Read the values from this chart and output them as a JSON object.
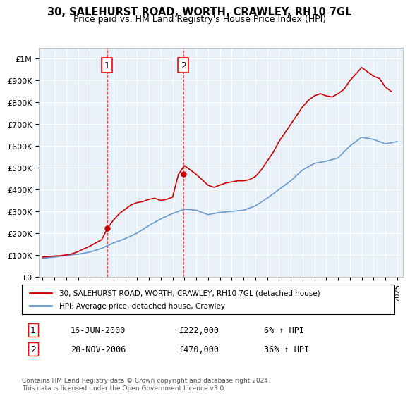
{
  "title": "30, SALEHURST ROAD, WORTH, CRAWLEY, RH10 7GL",
  "subtitle": "Price paid vs. HM Land Registry's House Price Index (HPI)",
  "xlabel": "",
  "ylabel": "",
  "ylim": [
    0,
    1050000
  ],
  "yticks": [
    0,
    100000,
    200000,
    300000,
    400000,
    500000,
    600000,
    700000,
    800000,
    900000,
    1000000
  ],
  "ytick_labels": [
    "£0",
    "£100K",
    "£200K",
    "£300K",
    "£400K",
    "£500K",
    "£600K",
    "£700K",
    "£800K",
    "£900K",
    "£1M"
  ],
  "background_color": "#ffffff",
  "plot_bg_color": "#e8f0f8",
  "grid_color": "#ffffff",
  "red_line_color": "#cc0000",
  "blue_line_color": "#6699cc",
  "marker_color": "#cc0000",
  "annotation1": {
    "label": "1",
    "date_index": 5.5,
    "price": 222000,
    "date_str": "16-JUN-2000",
    "amount": "£222,000",
    "pct": "6% ↑ HPI"
  },
  "annotation2": {
    "label": "2",
    "date_index": 11.5,
    "price": 470000,
    "date_str": "28-NOV-2006",
    "amount": "£470,000",
    "pct": "36% ↑ HPI"
  },
  "legend_line1": "30, SALEHURST ROAD, WORTH, CRAWLEY, RH10 7GL (detached house)",
  "legend_line2": "HPI: Average price, detached house, Crawley",
  "footnote": "Contains HM Land Registry data © Crown copyright and database right 2024.\nThis data is licensed under the Open Government Licence v3.0.",
  "years": [
    1995,
    1996,
    1997,
    1998,
    1999,
    2000,
    2001,
    2002,
    2003,
    2004,
    2005,
    2006,
    2007,
    2008,
    2009,
    2010,
    2011,
    2012,
    2013,
    2014,
    2015,
    2016,
    2017,
    2018,
    2019,
    2020,
    2021,
    2022,
    2023,
    2024,
    2025
  ],
  "hpi_values": [
    85000,
    90000,
    97000,
    103000,
    113000,
    130000,
    155000,
    175000,
    200000,
    235000,
    265000,
    290000,
    310000,
    305000,
    285000,
    295000,
    300000,
    305000,
    325000,
    360000,
    400000,
    440000,
    490000,
    520000,
    530000,
    545000,
    600000,
    640000,
    630000,
    610000,
    620000
  ],
  "price_paid_x": [
    1995.0,
    1995.5,
    1996.0,
    1996.5,
    1997.0,
    1997.5,
    1998.0,
    1998.5,
    1999.0,
    1999.5,
    2000.0,
    2000.5,
    2001.0,
    2001.5,
    2002.0,
    2002.5,
    2003.0,
    2003.5,
    2004.0,
    2004.5,
    2005.0,
    2005.5,
    2006.0,
    2006.5,
    2007.0,
    2007.5,
    2008.0,
    2008.5,
    2009.0,
    2009.5,
    2010.0,
    2010.5,
    2011.0,
    2011.5,
    2012.0,
    2012.5,
    2013.0,
    2013.5,
    2014.0,
    2014.5,
    2015.0,
    2015.5,
    2016.0,
    2016.5,
    2017.0,
    2017.5,
    2018.0,
    2018.5,
    2019.0,
    2019.5,
    2020.0,
    2020.5,
    2021.0,
    2021.5,
    2022.0,
    2022.5,
    2023.0,
    2023.5,
    2024.0,
    2024.5
  ],
  "price_paid_y": [
    90000,
    92000,
    95000,
    96000,
    100000,
    105000,
    115000,
    128000,
    140000,
    155000,
    170000,
    222000,
    260000,
    290000,
    310000,
    330000,
    340000,
    345000,
    355000,
    360000,
    350000,
    355000,
    365000,
    470000,
    510000,
    490000,
    470000,
    445000,
    420000,
    410000,
    420000,
    430000,
    435000,
    440000,
    440000,
    445000,
    460000,
    490000,
    530000,
    570000,
    620000,
    660000,
    700000,
    740000,
    780000,
    810000,
    830000,
    840000,
    830000,
    825000,
    840000,
    860000,
    900000,
    930000,
    960000,
    940000,
    920000,
    910000,
    870000,
    850000
  ]
}
